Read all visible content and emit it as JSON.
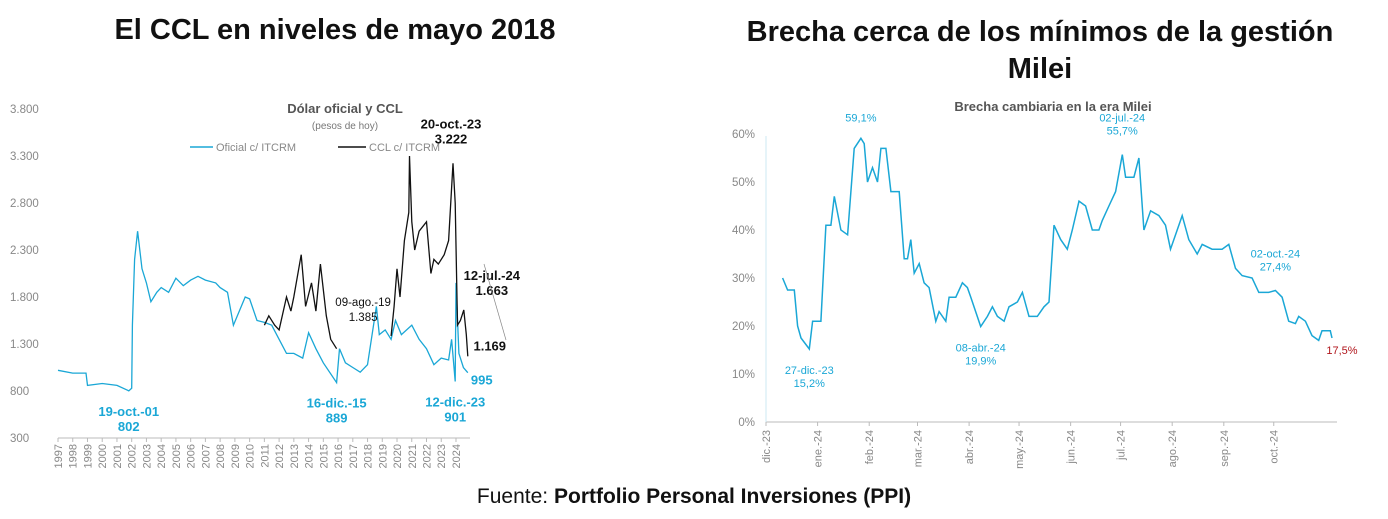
{
  "left": {
    "heading": "El CCL en niveles de mayo 2018"
  },
  "right": {
    "heading": "Brecha cerca de los mínimos de la gestión Milei"
  },
  "source": {
    "prefix": "Fuente: ",
    "name": "Portfolio Personal Inversiones (PPI)"
  },
  "colors": {
    "oficial": "#1aa7d6",
    "ccl": "#111111",
    "last": "#b0151b",
    "axis": "#888888"
  },
  "chart_data": [
    {
      "type": "line",
      "title": "Dólar oficial y CCL",
      "subtitle": "(pesos de hoy)",
      "ylim": [
        300,
        3800
      ],
      "yticks": [
        "300",
        "800",
        "1.300",
        "1.800",
        "2.300",
        "2.800",
        "3.300",
        "3.800"
      ],
      "ytick_values": [
        300,
        800,
        1300,
        1800,
        2300,
        2800,
        3300,
        3800
      ],
      "xticks": [
        "1997",
        "1998",
        "1999",
        "2000",
        "2001",
        "2002",
        "2003",
        "2004",
        "2005",
        "2006",
        "2007",
        "2008",
        "2009",
        "2010",
        "2011",
        "2012",
        "2013",
        "2014",
        "2015",
        "2016",
        "2017",
        "2018",
        "2019",
        "2020",
        "2021",
        "2022",
        "2023",
        "2024"
      ],
      "legend": "top-center",
      "series": [
        {
          "name": "Oficial c/ ITCRM",
          "points": [
            [
              1997,
              1020
            ],
            [
              1998,
              990
            ],
            [
              1998.9,
              990
            ],
            [
              1999,
              860
            ],
            [
              2000,
              880
            ],
            [
              2001,
              860
            ],
            [
              2001.8,
              802
            ],
            [
              2002,
              830
            ],
            [
              2002.05,
              1500
            ],
            [
              2002.2,
              2200
            ],
            [
              2002.4,
              2500
            ],
            [
              2002.7,
              2100
            ],
            [
              2003,
              1950
            ],
            [
              2003.3,
              1750
            ],
            [
              2003.7,
              1850
            ],
            [
              2004,
              1900
            ],
            [
              2004.5,
              1850
            ],
            [
              2005,
              2000
            ],
            [
              2005.5,
              1920
            ],
            [
              2006,
              1980
            ],
            [
              2006.5,
              2020
            ],
            [
              2007,
              1980
            ],
            [
              2007.7,
              1950
            ],
            [
              2008,
              1900
            ],
            [
              2008.5,
              1850
            ],
            [
              2008.9,
              1500
            ],
            [
              2009.3,
              1650
            ],
            [
              2009.7,
              1800
            ],
            [
              2010,
              1780
            ],
            [
              2010.5,
              1550
            ],
            [
              2011,
              1530
            ],
            [
              2011.5,
              1500
            ],
            [
              2012,
              1350
            ],
            [
              2012.5,
              1200
            ],
            [
              2013,
              1200
            ],
            [
              2013.6,
              1150
            ],
            [
              2014,
              1420
            ],
            [
              2014.5,
              1250
            ],
            [
              2015,
              1100
            ],
            [
              2015.9,
              889
            ],
            [
              2016.1,
              1250
            ],
            [
              2016.5,
              1100
            ],
            [
              2017,
              1050
            ],
            [
              2017.5,
              1000
            ],
            [
              2018,
              1080
            ],
            [
              2018.6,
              1700
            ],
            [
              2018.8,
              1400
            ],
            [
              2019.2,
              1450
            ],
            [
              2019.6,
              1350
            ],
            [
              2019.9,
              1550
            ],
            [
              2020.3,
              1400
            ],
            [
              2021,
              1500
            ],
            [
              2021.5,
              1350
            ],
            [
              2022,
              1250
            ],
            [
              2022.5,
              1080
            ],
            [
              2023,
              1150
            ],
            [
              2023.5,
              1130
            ],
            [
              2023.7,
              1350
            ],
            [
              2023.95,
              901
            ],
            [
              2024,
              1950
            ],
            [
              2024.2,
              1200
            ],
            [
              2024.5,
              1050
            ],
            [
              2024.8,
              995
            ]
          ]
        },
        {
          "name": "CCL c/ ITCRM",
          "points": [
            [
              2011,
              1500
            ],
            [
              2011.3,
              1600
            ],
            [
              2011.7,
              1500
            ],
            [
              2012,
              1450
            ],
            [
              2012.5,
              1800
            ],
            [
              2012.8,
              1650
            ],
            [
              2013,
              1800
            ],
            [
              2013.5,
              2250
            ],
            [
              2013.8,
              1700
            ],
            [
              2014.2,
              1950
            ],
            [
              2014.5,
              1650
            ],
            [
              2014.8,
              2150
            ],
            [
              2015.2,
              1600
            ],
            [
              2015.5,
              1350
            ],
            [
              2015.9,
              1250
            ],
            null,
            [
              2019.6,
              1385
            ],
            [
              2019.8,
              1700
            ],
            [
              2020,
              2100
            ],
            [
              2020.2,
              1800
            ],
            [
              2020.5,
              2400
            ],
            [
              2020.8,
              2700
            ],
            [
              2020.85,
              3300
            ],
            [
              2021,
              2600
            ],
            [
              2021.2,
              2300
            ],
            [
              2021.5,
              2500
            ],
            [
              2022,
              2600
            ],
            [
              2022.3,
              2050
            ],
            [
              2022.5,
              2200
            ],
            [
              2022.8,
              2150
            ],
            [
              2023.2,
              2250
            ],
            [
              2023.5,
              2400
            ],
            [
              2023.8,
              3222
            ],
            [
              2023.95,
              2800
            ],
            [
              2024.1,
              1500
            ],
            [
              2024.3,
              1550
            ],
            [
              2024.53,
              1663
            ],
            [
              2024.7,
              1400
            ],
            [
              2024.8,
              1169
            ]
          ]
        }
      ],
      "annotations": [
        {
          "text": [
            "19-oct.-01",
            "802"
          ],
          "x": 2001.8,
          "y": 802,
          "series": 0
        },
        {
          "text": [
            "16-dic.-15",
            "889"
          ],
          "x": 2015.9,
          "y": 889,
          "series": 0
        },
        {
          "text": [
            "12-dic.-23",
            "901"
          ],
          "x": 2023.95,
          "y": 901,
          "series": 0
        },
        {
          "text": [
            "995"
          ],
          "x": 2024.8,
          "y": 995,
          "series": 0
        },
        {
          "text": [
            "09-ago.-19",
            "1.385"
          ],
          "x": 2019.6,
          "y": 1385,
          "series": 1
        },
        {
          "text": [
            "20-oct.-23",
            "3.222"
          ],
          "x": 2023.8,
          "y": 3222,
          "series": 1
        },
        {
          "text": [
            "12-jul.-24",
            "1.663"
          ],
          "x": 2024.53,
          "y": 1663,
          "series": 1
        },
        {
          "text": [
            "1.169"
          ],
          "x": 2024.8,
          "y": 1169,
          "series": 1
        }
      ]
    },
    {
      "type": "line",
      "title": "Brecha cambiaria en la era Milei",
      "ylim": [
        0,
        60
      ],
      "yticks": [
        "0%",
        "10%",
        "20%",
        "30%",
        "40%",
        "50%",
        "60%"
      ],
      "xticks": [
        "dic.-23",
        "ene.-24",
        "feb.-24",
        "mar.-24",
        "abr.-24",
        "may.-24",
        "jun.-24",
        "jul.-24",
        "ago.-24",
        "sep.-24",
        "oct.-24"
      ],
      "xtick_dates": [
        "2023-12-01",
        "2024-01-01",
        "2024-02-01",
        "2024-03-01",
        "2024-04-01",
        "2024-05-01",
        "2024-06-01",
        "2024-07-01",
        "2024-08-01",
        "2024-09-01",
        "2024-10-01"
      ],
      "xrange": [
        "2023-12-01",
        "2024-11-08"
      ],
      "series": [
        {
          "points": [
            [
              "2023-12-11",
              30
            ],
            [
              "2023-12-14",
              27.5
            ],
            [
              "2023-12-18",
              27.5
            ],
            [
              "2023-12-20",
              20
            ],
            [
              "2023-12-22",
              17.5
            ],
            [
              "2023-12-27",
              15.2
            ],
            [
              "2023-12-29",
              21
            ],
            [
              "2024-01-03",
              21
            ],
            [
              "2024-01-06",
              41
            ],
            [
              "2024-01-09",
              41
            ],
            [
              "2024-01-11",
              47
            ],
            [
              "2024-01-15",
              40
            ],
            [
              "2024-01-19",
              39
            ],
            [
              "2024-01-23",
              57
            ],
            [
              "2024-01-27",
              59.1
            ],
            [
              "2024-01-29",
              58
            ],
            [
              "2024-01-31",
              50
            ],
            [
              "2024-02-03",
              53
            ],
            [
              "2024-02-06",
              50
            ],
            [
              "2024-02-08",
              57
            ],
            [
              "2024-02-11",
              57
            ],
            [
              "2024-02-14",
              48
            ],
            [
              "2024-02-19",
              48
            ],
            [
              "2024-02-22",
              34
            ],
            [
              "2024-02-24",
              34
            ],
            [
              "2024-02-26",
              38
            ],
            [
              "2024-02-28",
              31
            ],
            [
              "2024-03-02",
              33
            ],
            [
              "2024-03-05",
              29
            ],
            [
              "2024-03-08",
              28
            ],
            [
              "2024-03-12",
              21
            ],
            [
              "2024-03-14",
              23
            ],
            [
              "2024-03-18",
              21
            ],
            [
              "2024-03-20",
              26
            ],
            [
              "2024-03-24",
              26
            ],
            [
              "2024-03-28",
              29
            ],
            [
              "2024-03-31",
              28
            ],
            [
              "2024-04-02",
              26
            ],
            [
              "2024-04-08",
              19.9
            ],
            [
              "2024-04-12",
              22
            ],
            [
              "2024-04-15",
              24
            ],
            [
              "2024-04-18",
              22
            ],
            [
              "2024-04-22",
              21
            ],
            [
              "2024-04-25",
              24
            ],
            [
              "2024-04-30",
              25
            ],
            [
              "2024-05-03",
              27
            ],
            [
              "2024-05-07",
              22
            ],
            [
              "2024-05-12",
              22
            ],
            [
              "2024-05-16",
              24
            ],
            [
              "2024-05-19",
              25
            ],
            [
              "2024-05-22",
              41
            ],
            [
              "2024-05-26",
              38
            ],
            [
              "2024-05-30",
              36
            ],
            [
              "2024-06-02",
              40
            ],
            [
              "2024-06-06",
              46
            ],
            [
              "2024-06-10",
              45
            ],
            [
              "2024-06-14",
              40
            ],
            [
              "2024-06-18",
              40
            ],
            [
              "2024-06-20",
              42
            ],
            [
              "2024-06-24",
              45
            ],
            [
              "2024-06-28",
              48
            ],
            [
              "2024-07-02",
              55.7
            ],
            [
              "2024-07-04",
              51
            ],
            [
              "2024-07-09",
              51
            ],
            [
              "2024-07-12",
              55
            ],
            [
              "2024-07-15",
              40
            ],
            [
              "2024-07-19",
              44
            ],
            [
              "2024-07-24",
              43
            ],
            [
              "2024-07-28",
              41
            ],
            [
              "2024-07-31",
              36
            ],
            [
              "2024-08-04",
              40
            ],
            [
              "2024-08-07",
              43
            ],
            [
              "2024-08-11",
              38
            ],
            [
              "2024-08-16",
              35
            ],
            [
              "2024-08-19",
              37
            ],
            [
              "2024-08-25",
              36
            ],
            [
              "2024-08-31",
              36
            ],
            [
              "2024-09-04",
              37
            ],
            [
              "2024-09-08",
              32
            ],
            [
              "2024-09-12",
              30.5
            ],
            [
              "2024-09-18",
              30
            ],
            [
              "2024-09-22",
              27
            ],
            [
              "2024-09-28",
              27
            ],
            [
              "2024-10-02",
              27.4
            ],
            [
              "2024-10-06",
              26
            ],
            [
              "2024-10-10",
              21
            ],
            [
              "2024-10-14",
              20.5
            ],
            [
              "2024-10-16",
              22
            ],
            [
              "2024-10-20",
              21
            ],
            [
              "2024-10-24",
              18
            ],
            [
              "2024-10-28",
              17
            ],
            [
              "2024-10-30",
              19
            ],
            [
              "2024-11-04",
              19
            ],
            [
              "2024-11-05",
              17.5
            ]
          ]
        }
      ],
      "annotations": [
        {
          "text": [
            "27-dic.-23",
            "15,2%"
          ],
          "x": "2023-12-27",
          "y": 15.2,
          "pos": "below"
        },
        {
          "text": [
            "59,1%"
          ],
          "x": "2024-01-27",
          "y": 59.1,
          "pos": "above"
        },
        {
          "text": [
            "08-abr.-24",
            "19,9%"
          ],
          "x": "2024-04-08",
          "y": 19.9,
          "pos": "below"
        },
        {
          "text": [
            "02-jul.-24",
            "55,7%"
          ],
          "x": "2024-07-02",
          "y": 55.7,
          "pos": "above"
        },
        {
          "text": [
            "02-oct.-24",
            "27,4%"
          ],
          "x": "2024-10-02",
          "y": 27.4,
          "pos": "above"
        },
        {
          "text": [
            "17,5%"
          ],
          "x": "2024-11-05",
          "y": 17.5,
          "pos": "last"
        }
      ]
    }
  ]
}
